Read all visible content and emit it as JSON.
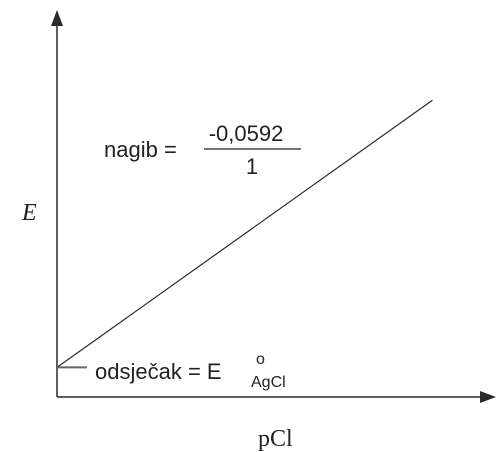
{
  "chart_data": {
    "type": "line",
    "xlabel": "pCl",
    "ylabel": "E",
    "grid": false,
    "legend": "none",
    "axis_tick_labels": false,
    "series": [
      {
        "points": [
          {
            "x": 0,
            "y": 0.55
          },
          {
            "x": 7.1,
            "y": 5.51
          }
        ]
      }
    ],
    "xlim": [
      0,
      8
    ],
    "ylim": [
      0,
      7
    ],
    "annotations": {
      "slope": {
        "prefix": "nagib = ",
        "numerator": "-0,0592",
        "denominator": "1"
      },
      "intercept": {
        "prefix": "odsječak = E",
        "superscript": "o",
        "subscript": "AgCl"
      }
    },
    "colors": {
      "line": "#2a2a2a",
      "text": "#222222"
    }
  }
}
